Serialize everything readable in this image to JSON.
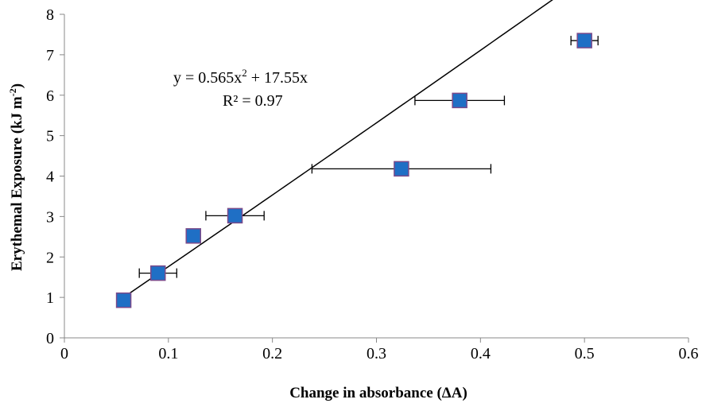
{
  "chart_data": {
    "type": "scatter",
    "xlabel": "Change in absorbance (ΔA)",
    "ylabel_main": "Erythemal Exposure (kJ m",
    "ylabel_sup": "-2",
    "ylabel_close": ")",
    "xlim": [
      0,
      0.6
    ],
    "ylim": [
      0,
      8
    ],
    "x_ticks": [
      0,
      0.1,
      0.2,
      0.3,
      0.4,
      0.5,
      0.6
    ],
    "x_tick_labels": [
      "0",
      "0.1",
      "0.2",
      "0.3",
      "0.4",
      "0.5",
      "0.6"
    ],
    "y_ticks": [
      0,
      1,
      2,
      3,
      4,
      5,
      6,
      7,
      8
    ],
    "y_tick_labels": [
      "0",
      "1",
      "2",
      "3",
      "4",
      "5",
      "6",
      "7",
      "8"
    ],
    "grid": false,
    "legend": false,
    "marker": "square",
    "marker_color": "#1f6fc5",
    "marker_edge": "#7a4a8a",
    "points": [
      {
        "x": 0.057,
        "y": 0.93,
        "xerr": 0.004
      },
      {
        "x": 0.09,
        "y": 1.6,
        "xerr": 0.018
      },
      {
        "x": 0.124,
        "y": 2.52,
        "xerr": 0.005
      },
      {
        "x": 0.164,
        "y": 3.02,
        "xerr": 0.028
      },
      {
        "x": 0.324,
        "y": 4.18,
        "xerr": 0.086
      },
      {
        "x": 0.38,
        "y": 5.87,
        "xerr": 0.043
      },
      {
        "x": 0.5,
        "y": 7.35,
        "xerr": 0.013
      }
    ],
    "trendline": {
      "type": "polynomial",
      "coefficients": {
        "a2": 0.565,
        "a1": 17.55,
        "a0": 0
      },
      "x_range": [
        0.057,
        0.5
      ]
    },
    "annotation": {
      "equation_main": "y = 0.565x",
      "equation_sup": "2",
      "equation_rest": " + 17.55x",
      "r2": "R² = 0.97"
    }
  }
}
